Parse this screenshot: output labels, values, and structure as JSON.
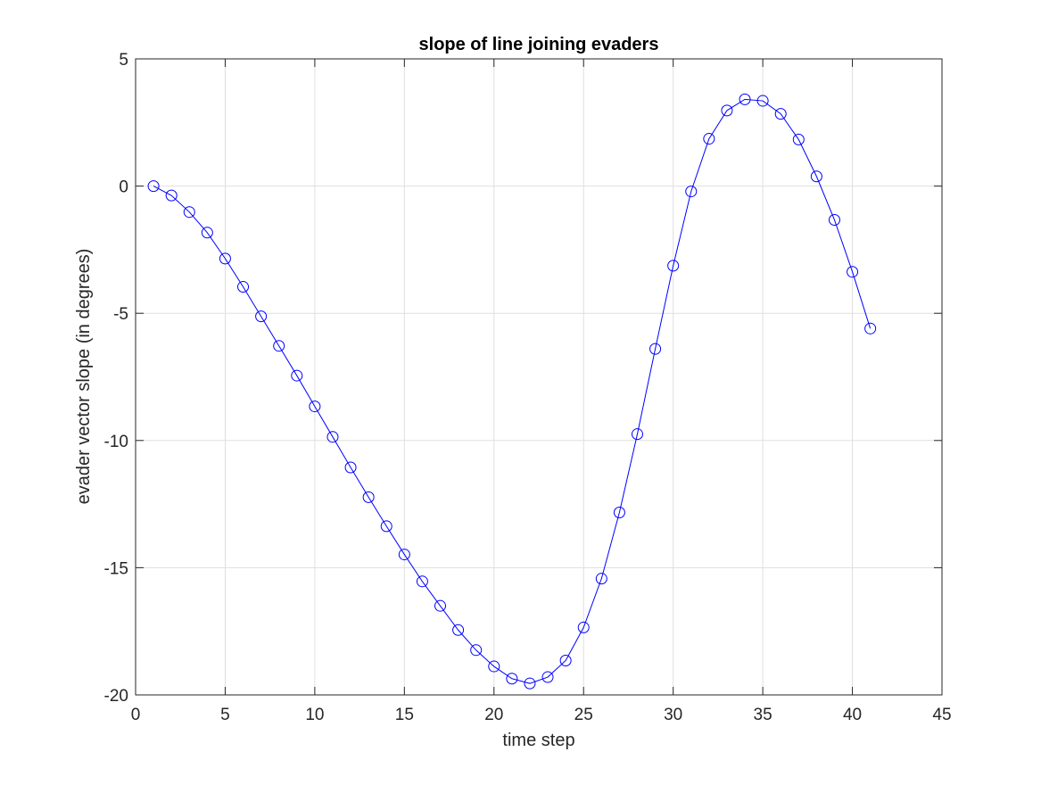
{
  "chart_data": {
    "type": "line",
    "title": "slope of line joining evaders",
    "xlabel": "time step",
    "ylabel": "evader vector slope (in degrees)",
    "xlim": [
      0,
      45
    ],
    "ylim": [
      -20,
      5
    ],
    "x_ticks": [
      0,
      5,
      10,
      15,
      20,
      25,
      30,
      35,
      40,
      45
    ],
    "y_ticks": [
      5,
      0,
      -5,
      -10,
      -15,
      -20
    ],
    "x_tick_labels": [
      "0",
      "5",
      "10",
      "15",
      "20",
      "25",
      "30",
      "35",
      "40",
      "45"
    ],
    "y_tick_labels": [
      "5",
      "0",
      "-5",
      "-10",
      "-15",
      "-20"
    ],
    "grid": true,
    "box": true,
    "marker": "circle",
    "line_color": "#0000ff",
    "series": [
      {
        "x": [
          1,
          2,
          3,
          4,
          5,
          6,
          7,
          8,
          9,
          10,
          11,
          12,
          13,
          14,
          15,
          16,
          17,
          18,
          19,
          20,
          21,
          22,
          23,
          24,
          25,
          26,
          27,
          28,
          29,
          30,
          31,
          32,
          33,
          34,
          35,
          36,
          37,
          38,
          39,
          40,
          41
        ],
        "values": [
          0.0,
          -0.37,
          -1.02,
          -1.83,
          -2.85,
          -3.96,
          -5.12,
          -6.28,
          -7.45,
          -8.66,
          -9.86,
          -11.06,
          -12.23,
          -13.37,
          -14.48,
          -15.54,
          -16.5,
          -17.45,
          -18.24,
          -18.88,
          -19.36,
          -19.55,
          -19.3,
          -18.65,
          -17.35,
          -15.43,
          -12.83,
          -9.75,
          -6.4,
          -3.13,
          -0.21,
          1.86,
          2.97,
          3.41,
          3.35,
          2.84,
          1.83,
          0.38,
          -1.33,
          -3.37,
          -5.6
        ]
      }
    ]
  }
}
